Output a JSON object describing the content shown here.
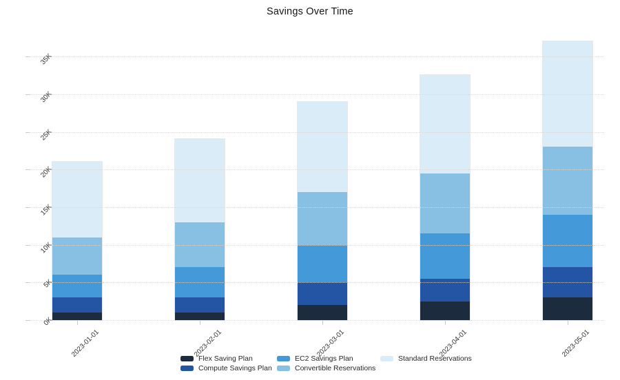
{
  "title": "Savings Over Time",
  "chart_data": {
    "type": "bar",
    "stacked": true,
    "title": "Savings Over Time",
    "categories": [
      "2023-01-01",
      "2023-02-01",
      "2023-03-01",
      "2023-04-01",
      "2023-05-01"
    ],
    "series": [
      {
        "name": "Flex Saving Plan",
        "color": "#1c2b3d",
        "values": [
          1000,
          1000,
          2000,
          2500,
          3000
        ]
      },
      {
        "name": "Compute Savings Plan",
        "color": "#2454a4",
        "values": [
          2000,
          2000,
          3000,
          3000,
          4000
        ]
      },
      {
        "name": "EC2 Savings Plan",
        "color": "#4499d9",
        "values": [
          3000,
          4000,
          5000,
          6000,
          7000
        ]
      },
      {
        "name": "Convertible Reservations",
        "color": "#87c0e3",
        "values": [
          5000,
          6000,
          7000,
          8000,
          9000
        ]
      },
      {
        "name": "Standard Reservations",
        "color": "#daecf8",
        "values": [
          10000,
          11000,
          12000,
          13000,
          14000
        ]
      }
    ],
    "stack_totals": [
      21000,
      24000,
      29000,
      32500,
      37000
    ],
    "y_axis": {
      "tick_labels": [
        "0K",
        "5K",
        "10K",
        "15K",
        "20K",
        "25K",
        "30K",
        "35K"
      ],
      "tick_values": [
        0,
        5000,
        10000,
        15000,
        20000,
        25000,
        30000,
        35000
      ],
      "ylim": [
        0,
        38800
      ],
      "grid": "dotted-horizontal"
    },
    "x_axis": {
      "label_rotation_deg": -45
    },
    "legend_position": "bottom",
    "legend_columns": 3
  }
}
